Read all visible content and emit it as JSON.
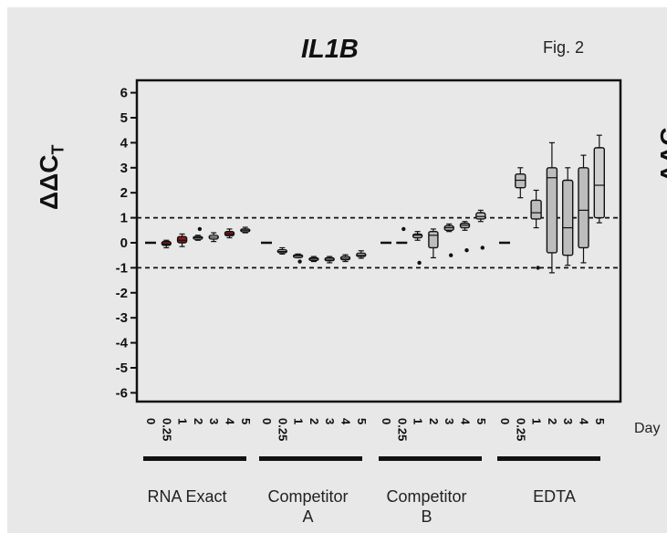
{
  "figure": {
    "title": "IL1B",
    "fig_label": "Fig. 2",
    "ylabel_main": "ΔΔC",
    "ylabel_sub": "T",
    "ylabel_cut": "ΔΔC",
    "day_label": "Day"
  },
  "chart_data": {
    "type": "box",
    "title": "IL1B",
    "ylabel": "ΔΔCT",
    "ylim": [
      -6.5,
      6.5
    ],
    "yticks": [
      6,
      5,
      4,
      3,
      2,
      1,
      0,
      -1,
      -2,
      -3,
      -4,
      -5,
      -6
    ],
    "reference_lines": [
      1,
      -1
    ],
    "x_tick_labels": [
      "0",
      "0.25",
      "1",
      "2",
      "3",
      "4",
      "5"
    ],
    "colors": {
      "red_box": "#8b1a1a",
      "grey_box": "#bdbdbd",
      "white_box": "#e6e6e6"
    },
    "groups": [
      {
        "name": "RNA Exact",
        "boxes": [
          {
            "day": "0",
            "min": 0,
            "q1": 0,
            "median": 0,
            "q3": 0,
            "max": 0,
            "outliers": [],
            "color": "none"
          },
          {
            "day": "0.25",
            "min": -0.2,
            "q1": -0.1,
            "median": -0.05,
            "q3": 0.05,
            "max": 0.1,
            "outliers": [],
            "color": "red"
          },
          {
            "day": "1",
            "min": -0.15,
            "q1": 0.0,
            "median": 0.1,
            "q3": 0.25,
            "max": 0.35,
            "outliers": [],
            "color": "red"
          },
          {
            "day": "2",
            "min": 0.1,
            "q1": 0.15,
            "median": 0.2,
            "q3": 0.25,
            "max": 0.3,
            "outliers": [
              0.55
            ],
            "color": "none"
          },
          {
            "day": "3",
            "min": 0.05,
            "q1": 0.15,
            "median": 0.22,
            "q3": 0.3,
            "max": 0.4,
            "outliers": [],
            "color": "none"
          },
          {
            "day": "4",
            "min": 0.2,
            "q1": 0.28,
            "median": 0.35,
            "q3": 0.45,
            "max": 0.55,
            "outliers": [],
            "color": "red"
          },
          {
            "day": "5",
            "min": 0.4,
            "q1": 0.45,
            "median": 0.5,
            "q3": 0.55,
            "max": 0.62,
            "outliers": [],
            "color": "none"
          }
        ]
      },
      {
        "name": "Competitor A",
        "boxes": [
          {
            "day": "0",
            "min": 0,
            "q1": 0,
            "median": 0,
            "q3": 0,
            "max": 0,
            "outliers": [],
            "color": "none"
          },
          {
            "day": "0.25",
            "min": -0.45,
            "q1": -0.4,
            "median": -0.35,
            "q3": -0.28,
            "max": -0.2,
            "outliers": [],
            "color": "white"
          },
          {
            "day": "1",
            "min": -0.6,
            "q1": -0.55,
            "median": -0.52,
            "q3": -0.48,
            "max": -0.45,
            "outliers": [
              -0.75
            ],
            "color": "white"
          },
          {
            "day": "2",
            "min": -0.75,
            "q1": -0.7,
            "median": -0.65,
            "q3": -0.6,
            "max": -0.55,
            "outliers": [],
            "color": "white"
          },
          {
            "day": "3",
            "min": -0.8,
            "q1": -0.72,
            "median": -0.66,
            "q3": -0.6,
            "max": -0.55,
            "outliers": [],
            "color": "white"
          },
          {
            "day": "4",
            "min": -0.75,
            "q1": -0.68,
            "median": -0.62,
            "q3": -0.55,
            "max": -0.48,
            "outliers": [],
            "color": "white"
          },
          {
            "day": "5",
            "min": -0.62,
            "q1": -0.55,
            "median": -0.5,
            "q3": -0.42,
            "max": -0.32,
            "outliers": [],
            "color": "white"
          }
        ]
      },
      {
        "name": "Competitor B",
        "boxes": [
          {
            "day": "0",
            "min": 0,
            "q1": 0,
            "median": 0,
            "q3": 0,
            "max": 0,
            "outliers": [],
            "color": "none"
          },
          {
            "day": "0.25",
            "min": 0,
            "q1": 0,
            "median": 0,
            "q3": 0,
            "max": 0,
            "outliers": [
              0.55
            ],
            "color": "none"
          },
          {
            "day": "1",
            "min": 0.1,
            "q1": 0.2,
            "median": 0.3,
            "q3": 0.35,
            "max": 0.45,
            "outliers": [
              -0.8
            ],
            "color": "grey"
          },
          {
            "day": "2",
            "min": -0.6,
            "q1": -0.2,
            "median": 0.3,
            "q3": 0.45,
            "max": 0.55,
            "outliers": [],
            "color": "grey"
          },
          {
            "day": "3",
            "min": 0.45,
            "q1": 0.5,
            "median": 0.6,
            "q3": 0.68,
            "max": 0.75,
            "outliers": [
              -0.5
            ],
            "color": "grey"
          },
          {
            "day": "4",
            "min": 0.5,
            "q1": 0.6,
            "median": 0.7,
            "q3": 0.78,
            "max": 0.85,
            "outliers": [
              -0.3
            ],
            "color": "grey"
          },
          {
            "day": "5",
            "min": 0.85,
            "q1": 0.95,
            "median": 1.05,
            "q3": 1.2,
            "max": 1.3,
            "outliers": [
              -0.2
            ],
            "color": "grey"
          }
        ]
      },
      {
        "name": "EDTA",
        "boxes": [
          {
            "day": "0",
            "min": 0,
            "q1": 0,
            "median": 0,
            "q3": 0,
            "max": 0,
            "outliers": [],
            "color": "none"
          },
          {
            "day": "0.25",
            "min": 1.8,
            "q1": 2.2,
            "median": 2.5,
            "q3": 2.75,
            "max": 3.0,
            "outliers": [],
            "color": "grey"
          },
          {
            "day": "1",
            "min": 0.6,
            "q1": 0.95,
            "median": 1.2,
            "q3": 1.7,
            "max": 2.1,
            "outliers": [
              -1.0
            ],
            "color": "grey"
          },
          {
            "day": "2",
            "min": -1.2,
            "q1": -0.4,
            "median": 2.6,
            "q3": 3.0,
            "max": 4.0,
            "outliers": [],
            "color": "grey"
          },
          {
            "day": "3",
            "min": -0.9,
            "q1": -0.5,
            "median": 0.6,
            "q3": 2.5,
            "max": 3.0,
            "outliers": [],
            "color": "grey"
          },
          {
            "day": "4",
            "min": -0.8,
            "q1": -0.2,
            "median": 1.3,
            "q3": 3.0,
            "max": 3.5,
            "outliers": [],
            "color": "grey"
          },
          {
            "day": "5",
            "min": 0.8,
            "q1": 1.0,
            "median": 2.3,
            "q3": 3.8,
            "max": 4.3,
            "outliers": [],
            "color": "lightgrey"
          }
        ]
      }
    ]
  },
  "group_labels": [
    {
      "line1": "RNA Exact",
      "line2": ""
    },
    {
      "line1": "Competitor",
      "line2": "A"
    },
    {
      "line1": "Competitor",
      "line2": "B"
    },
    {
      "line1": "EDTA",
      "line2": ""
    }
  ]
}
